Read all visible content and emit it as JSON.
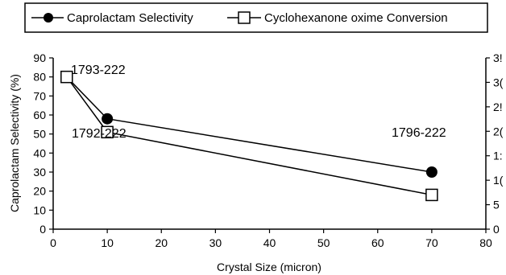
{
  "chart_data": {
    "type": "line",
    "xlabel": "Crystal Size (micron)",
    "ylabel": "Caprolactam Selectivity (%)",
    "xlim": [
      0,
      80
    ],
    "x_ticks": [
      0,
      10,
      20,
      30,
      40,
      50,
      60,
      70,
      80
    ],
    "ylim": [
      0,
      90
    ],
    "y_ticks": [
      0,
      10,
      20,
      30,
      40,
      50,
      60,
      70,
      80,
      90
    ],
    "y2_ticks": [
      "0",
      "5",
      "1(",
      "1:",
      "2(",
      "2!",
      "3(",
      "3!"
    ],
    "grid": false,
    "legend_position": "top",
    "series": [
      {
        "name": "Caprolactam Selectivity",
        "marker": "filled-circle",
        "color": "#000000",
        "x": [
          2.5,
          10,
          70
        ],
        "y": [
          80,
          58,
          30
        ]
      },
      {
        "name": "Cyclohexanone oxime Conversion",
        "marker": "open-square",
        "color": "#000000",
        "x": [
          2.5,
          10,
          70
        ],
        "y": [
          80,
          51,
          18
        ]
      }
    ],
    "annotations": [
      {
        "text": "1793-222"
      },
      {
        "text": "1792-222"
      },
      {
        "text": "1796-222"
      }
    ]
  }
}
